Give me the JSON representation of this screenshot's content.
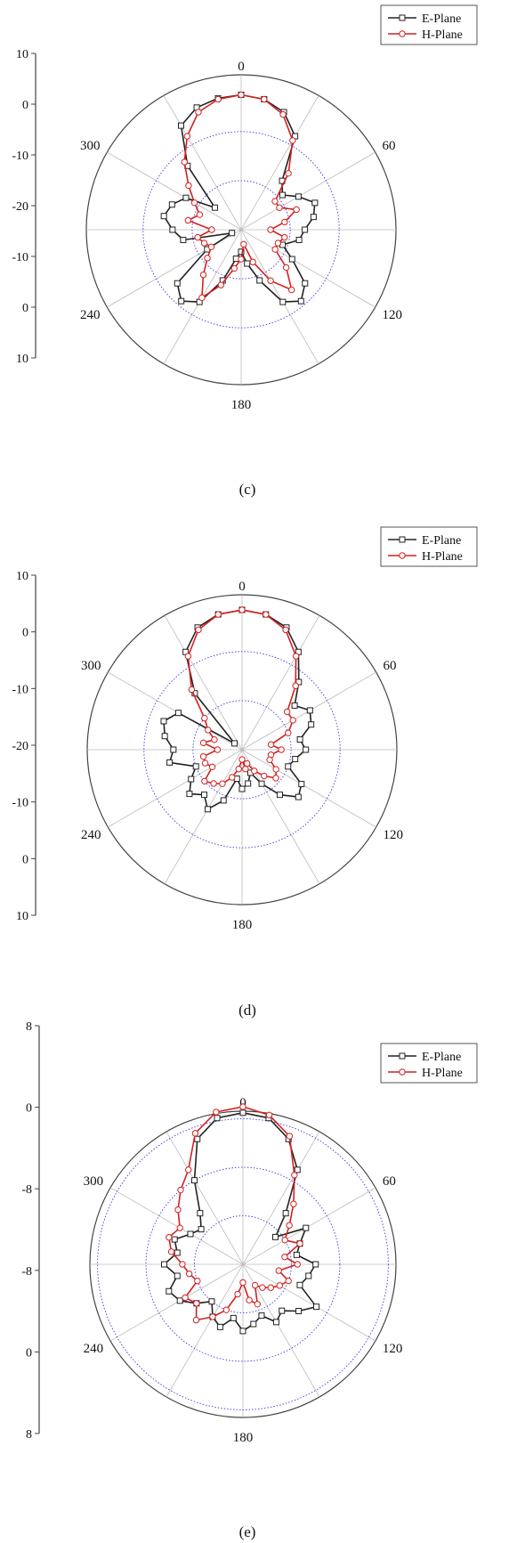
{
  "colors": {
    "e_plane": "#222222",
    "h_plane": "#d42020",
    "grid": "#3a3ae6",
    "spoke": "#bbbbbb",
    "outer": "#444444"
  },
  "chart_data": [
    {
      "type": "polar-line",
      "caption": "(c)",
      "angular_ticks": [
        "0",
        "60",
        "120",
        "180",
        "240",
        "300"
      ],
      "radial_tick_labels": [
        "10",
        "0",
        "-10",
        "-20",
        "-10",
        "0",
        "10"
      ],
      "radial_range": [
        -20,
        10
      ],
      "grid_circles": [
        -10,
        0
      ],
      "legend": {
        "position": "top-right",
        "entries": [
          "E-Plane",
          "H-Plane"
        ]
      },
      "series": [
        {
          "name": "E-Plane",
          "marker": "square",
          "angles": [
            0,
            10,
            20,
            30,
            40,
            50,
            60,
            70,
            80,
            90,
            100,
            110,
            120,
            130,
            140,
            150,
            160,
            170,
            180,
            190,
            200,
            210,
            220,
            230,
            240,
            250,
            260,
            270,
            280,
            290,
            300,
            310,
            320,
            330,
            340,
            350
          ],
          "values": [
            7.5,
            7,
            5.5,
            2,
            -7,
            -9,
            -6.5,
            -4,
            -5,
            -7,
            -8,
            -11,
            -8,
            -3,
            -1,
            -3,
            -9,
            -13,
            -15.5,
            -14,
            -9,
            -3,
            -1,
            -3,
            -12,
            -18,
            -8,
            -6,
            -4,
            -5,
            -7,
            -13,
            -3,
            4.5,
            6.5,
            7.2
          ]
        },
        {
          "name": "H-Plane",
          "marker": "circle",
          "angles": [
            0,
            10,
            20,
            30,
            40,
            50,
            60,
            70,
            80,
            90,
            100,
            110,
            120,
            130,
            140,
            150,
            160,
            170,
            180,
            190,
            200,
            210,
            220,
            230,
            240,
            250,
            260,
            270,
            280,
            290,
            300,
            310,
            320,
            330,
            340,
            350
          ],
          "values": [
            7.5,
            7,
            5,
            1,
            -5,
            -11,
            -11,
            -8,
            -11,
            -14,
            -11,
            -12,
            -12,
            -8,
            -4,
            -8,
            -13,
            -17,
            -14,
            -12,
            -8,
            -4,
            -8,
            -11,
            -13,
            -12,
            -11,
            -14,
            -9,
            -11,
            -9,
            -6,
            -2,
            2,
            5.5,
            7
          ]
        }
      ]
    },
    {
      "type": "polar-line",
      "caption": "(d)",
      "angular_ticks": [
        "0",
        "60",
        "120",
        "180",
        "240",
        "300"
      ],
      "radial_tick_labels": [
        "10",
        "0",
        "-10",
        "-20",
        "-10",
        "0",
        "10"
      ],
      "radial_range": [
        -20,
        10
      ],
      "grid_circles": [
        -10,
        0
      ],
      "legend": {
        "position": "top-right",
        "entries": [
          "E-Plane",
          "H-Plane"
        ]
      },
      "series": [
        {
          "name": "E-Plane",
          "marker": "square",
          "angles": [
            0,
            10,
            20,
            30,
            40,
            50,
            60,
            70,
            80,
            90,
            100,
            110,
            120,
            130,
            140,
            150,
            160,
            170,
            180,
            190,
            200,
            210,
            220,
            230,
            240,
            250,
            260,
            270,
            280,
            290,
            300,
            310,
            320,
            330,
            340,
            350
          ],
          "values": [
            8.5,
            8,
            6.5,
            3,
            -2,
            -6,
            -4,
            -5,
            -8,
            -7,
            -9,
            -10,
            -6,
            -5,
            -8,
            -12,
            -15,
            -13,
            -12,
            -14,
            -9,
            -6,
            -8,
            -6,
            -8,
            -10,
            -5,
            -6,
            -4,
            -3,
            -5,
            -18,
            -5,
            3,
            6.5,
            8
          ]
        },
        {
          "name": "H-Plane",
          "marker": "circle",
          "angles": [
            0,
            10,
            20,
            30,
            40,
            50,
            60,
            70,
            80,
            90,
            100,
            110,
            120,
            130,
            140,
            150,
            160,
            170,
            180,
            190,
            200,
            210,
            220,
            230,
            240,
            250,
            260,
            270,
            280,
            290,
            300,
            310,
            320,
            330,
            340,
            350
          ],
          "values": [
            8.5,
            8,
            6,
            2,
            -3,
            -8,
            -8,
            -10,
            -14,
            -12,
            -14,
            -14,
            -12,
            -11,
            -13,
            -15,
            -17,
            -16,
            -18,
            -16,
            -14,
            -12,
            -11,
            -10,
            -13,
            -12,
            -12,
            -15,
            -12,
            -14,
            -12,
            -10,
            -4,
            2,
            6,
            8
          ]
        }
      ]
    },
    {
      "type": "polar-line",
      "caption": "(e)",
      "angular_ticks": [
        "0",
        "60",
        "120",
        "180",
        "240",
        "300"
      ],
      "radial_tick_labels": [
        "8",
        "0",
        "-8",
        "-8",
        "0",
        "8"
      ],
      "radial_range": [
        -16,
        8
      ],
      "grid_circles": [
        -8,
        0,
        8
      ],
      "legend": {
        "position": "top-right",
        "entries": [
          "E-Plane",
          "H-Plane"
        ]
      },
      "series": [
        {
          "name": "E-Plane",
          "marker": "square",
          "angles": [
            0,
            10,
            20,
            30,
            40,
            50,
            60,
            70,
            80,
            90,
            100,
            110,
            120,
            130,
            140,
            150,
            160,
            170,
            180,
            190,
            200,
            210,
            220,
            230,
            240,
            250,
            260,
            270,
            280,
            290,
            300,
            310,
            320,
            330,
            340,
            350
          ],
          "values": [
            9,
            8.5,
            6,
            2,
            -5,
            -9,
            -4,
            -6,
            -7,
            -4,
            -5,
            -6,
            -2,
            -4,
            -6,
            -5,
            -7,
            -6,
            -5,
            -7,
            -5,
            -6,
            -8,
            -6,
            -4,
            -3,
            -5,
            -3,
            -5,
            -4,
            -6,
            -7,
            -5,
            0,
            6,
            8.5
          ]
        },
        {
          "name": "H-Plane",
          "marker": "circle",
          "angles": [
            0,
            10,
            20,
            30,
            40,
            50,
            60,
            70,
            80,
            90,
            100,
            110,
            120,
            130,
            140,
            150,
            160,
            170,
            180,
            190,
            200,
            210,
            220,
            230,
            240,
            250,
            260,
            270,
            280,
            290,
            300,
            310,
            320,
            330,
            340,
            350
          ],
          "values": [
            10,
            9,
            6.5,
            1,
            -3,
            -6,
            -8,
            -6,
            -9,
            -7,
            -10,
            -8,
            -9,
            -10,
            -11,
            -12,
            -9,
            -10,
            -13,
            -11,
            -8,
            -6,
            -4,
            -6,
            -5,
            -8,
            -7,
            -6,
            -4,
            -3,
            -4,
            -2,
            0,
            2,
            7,
            9.5
          ]
        }
      ]
    }
  ]
}
